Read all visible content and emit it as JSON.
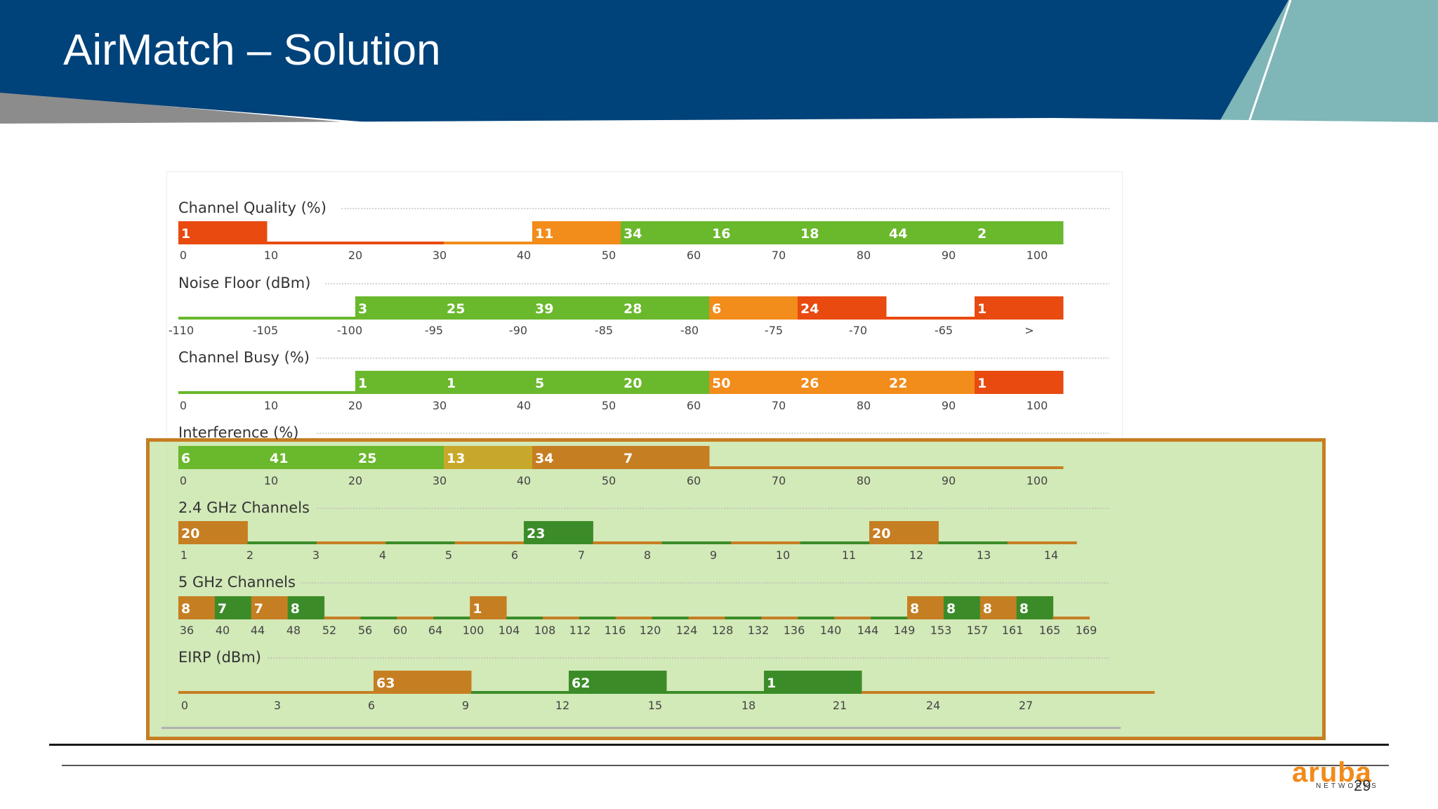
{
  "slide": {
    "title": "AirMatch – Solution",
    "page_number": "29"
  },
  "logo": {
    "word": "aruba",
    "sub": "NETWORKS"
  },
  "colors": {
    "red": "#e84a10",
    "orange": "#f28c1a",
    "green": "#6ab82c",
    "dark_green": "#3b8c28",
    "dark_orange": "#c67e22",
    "olive": "#c8a82a",
    "navy": "#00427a",
    "teal": "#7eb8b8"
  },
  "chart_data": [
    {
      "type": "bar",
      "title": "Channel Quality (%)",
      "tick_labels": [
        "0",
        "10",
        "20",
        "30",
        "40",
        "50",
        "60",
        "70",
        "80",
        "90",
        "100"
      ],
      "bins": [
        {
          "value": "1",
          "color": "red"
        },
        {
          "value": "",
          "color": "red"
        },
        {
          "value": "",
          "color": "red"
        },
        {
          "value": "",
          "color": "orange"
        },
        {
          "value": "11",
          "color": "orange"
        },
        {
          "value": "34",
          "color": "green"
        },
        {
          "value": "16",
          "color": "green"
        },
        {
          "value": "18",
          "color": "green"
        },
        {
          "value": "44",
          "color": "green"
        },
        {
          "value": "2",
          "color": "green"
        }
      ]
    },
    {
      "type": "bar",
      "title": "Noise Floor (dBm)",
      "tick_labels": [
        "-110",
        "-105",
        "-100",
        "-95",
        "-90",
        "-85",
        "-80",
        "-75",
        "-70",
        "-65",
        ">"
      ],
      "bins": [
        {
          "value": "",
          "color": "green"
        },
        {
          "value": "",
          "color": "green"
        },
        {
          "value": "3",
          "color": "green"
        },
        {
          "value": "25",
          "color": "green"
        },
        {
          "value": "39",
          "color": "green"
        },
        {
          "value": "28",
          "color": "green"
        },
        {
          "value": "6",
          "color": "orange"
        },
        {
          "value": "24",
          "color": "red"
        },
        {
          "value": "",
          "color": "red"
        },
        {
          "value": "1",
          "color": "red"
        }
      ]
    },
    {
      "type": "bar",
      "title": "Channel Busy (%)",
      "tick_labels": [
        "0",
        "10",
        "20",
        "30",
        "40",
        "50",
        "60",
        "70",
        "80",
        "90",
        "100"
      ],
      "bins": [
        {
          "value": "",
          "color": "green"
        },
        {
          "value": "",
          "color": "green"
        },
        {
          "value": "1",
          "color": "green"
        },
        {
          "value": "1",
          "color": "green"
        },
        {
          "value": "5",
          "color": "green"
        },
        {
          "value": "20",
          "color": "green"
        },
        {
          "value": "50",
          "color": "orange"
        },
        {
          "value": "26",
          "color": "orange"
        },
        {
          "value": "22",
          "color": "orange"
        },
        {
          "value": "1",
          "color": "red"
        }
      ]
    },
    {
      "type": "bar",
      "title": "Interference (%)",
      "tick_labels": [
        "0",
        "10",
        "20",
        "30",
        "40",
        "50",
        "60",
        "70",
        "80",
        "90",
        "100"
      ],
      "bins": [
        {
          "value": "6",
          "color": "green"
        },
        {
          "value": "41",
          "color": "green"
        },
        {
          "value": "25",
          "color": "green"
        },
        {
          "value": "13",
          "color": "olive"
        },
        {
          "value": "34",
          "color": "dark_orange"
        },
        {
          "value": "7",
          "color": "dark_orange"
        },
        {
          "value": "",
          "color": "dark_orange"
        },
        {
          "value": "",
          "color": "dark_orange"
        },
        {
          "value": "",
          "color": "dark_orange"
        },
        {
          "value": "",
          "color": "dark_orange"
        }
      ]
    },
    {
      "type": "bar",
      "title": "2.4 GHz Channels",
      "tick_labels": [
        "1",
        "2",
        "3",
        "4",
        "5",
        "6",
        "7",
        "8",
        "9",
        "10",
        "11",
        "12",
        "13",
        "14"
      ],
      "bins": [
        {
          "value": "20",
          "color": "dark_orange"
        },
        {
          "value": "",
          "color": "dark_green"
        },
        {
          "value": "",
          "color": "dark_orange"
        },
        {
          "value": "",
          "color": "dark_green"
        },
        {
          "value": "",
          "color": "dark_orange"
        },
        {
          "value": "23",
          "color": "dark_green"
        },
        {
          "value": "",
          "color": "dark_orange"
        },
        {
          "value": "",
          "color": "dark_green"
        },
        {
          "value": "",
          "color": "dark_orange"
        },
        {
          "value": "",
          "color": "dark_green"
        },
        {
          "value": "20",
          "color": "dark_orange"
        },
        {
          "value": "",
          "color": "dark_green"
        },
        {
          "value": "",
          "color": "dark_orange"
        }
      ]
    },
    {
      "type": "bar",
      "title": "5 GHz Channels",
      "tick_labels": [
        "36",
        "40",
        "44",
        "48",
        "52",
        "56",
        "60",
        "64",
        "100",
        "104",
        "108",
        "112",
        "116",
        "120",
        "124",
        "128",
        "132",
        "136",
        "140",
        "144",
        "149",
        "153",
        "157",
        "161",
        "165",
        "169"
      ],
      "bins": [
        {
          "value": "8",
          "color": "dark_orange"
        },
        {
          "value": "7",
          "color": "dark_green"
        },
        {
          "value": "7",
          "color": "dark_orange"
        },
        {
          "value": "8",
          "color": "dark_green"
        },
        {
          "value": "",
          "color": "dark_orange"
        },
        {
          "value": "",
          "color": "dark_green"
        },
        {
          "value": "",
          "color": "dark_orange"
        },
        {
          "value": "",
          "color": "dark_green"
        },
        {
          "value": "1",
          "color": "dark_orange"
        },
        {
          "value": "",
          "color": "dark_green"
        },
        {
          "value": "",
          "color": "dark_orange"
        },
        {
          "value": "",
          "color": "dark_green"
        },
        {
          "value": "",
          "color": "dark_orange"
        },
        {
          "value": "",
          "color": "dark_green"
        },
        {
          "value": "",
          "color": "dark_orange"
        },
        {
          "value": "",
          "color": "dark_green"
        },
        {
          "value": "",
          "color": "dark_orange"
        },
        {
          "value": "",
          "color": "dark_green"
        },
        {
          "value": "",
          "color": "dark_orange"
        },
        {
          "value": "",
          "color": "dark_green"
        },
        {
          "value": "8",
          "color": "dark_orange"
        },
        {
          "value": "8",
          "color": "dark_green"
        },
        {
          "value": "8",
          "color": "dark_orange"
        },
        {
          "value": "8",
          "color": "dark_green"
        },
        {
          "value": "",
          "color": "dark_orange"
        }
      ]
    },
    {
      "type": "bar",
      "title": "EIRP (dBm)",
      "tick_labels": [
        "0",
        "3",
        "6",
        "9",
        "12",
        "15",
        "18",
        "21",
        "24",
        "27"
      ],
      "bins": [
        {
          "value": "",
          "color": "dark_orange"
        },
        {
          "value": "",
          "color": "dark_orange"
        },
        {
          "value": "63",
          "color": "dark_orange"
        },
        {
          "value": "",
          "color": "dark_green"
        },
        {
          "value": "62",
          "color": "dark_green"
        },
        {
          "value": "",
          "color": "dark_green"
        },
        {
          "value": "1",
          "color": "dark_green"
        },
        {
          "value": "",
          "color": "dark_orange"
        },
        {
          "value": "",
          "color": "dark_orange"
        },
        {
          "value": "",
          "color": "dark_orange"
        }
      ]
    }
  ]
}
